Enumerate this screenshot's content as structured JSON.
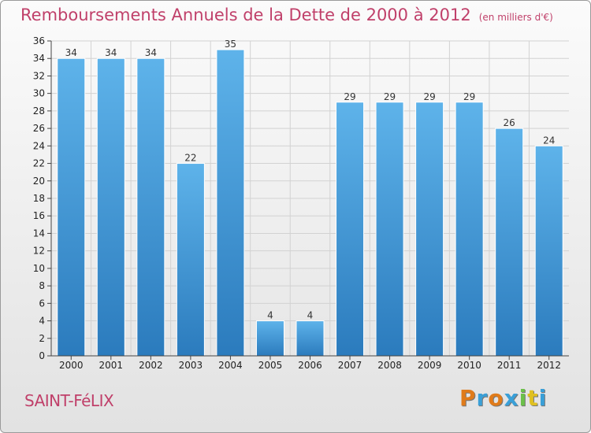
{
  "header": {
    "title": "Remboursements Annuels de la Dette de 2000 à 2012",
    "unit": "(en milliers d'€)"
  },
  "footer": {
    "commune": "SAINT-FéLIX",
    "logo_letters": [
      "P",
      "r",
      "o",
      "x",
      "i",
      "t",
      "i"
    ],
    "logo_colors": [
      "#e07b1a",
      "#3aa0d8",
      "#e07b1a",
      "#3aa0d8",
      "#6cc04a",
      "#e0c020",
      "#3aa0d8"
    ]
  },
  "colors": {
    "bar_light": "#5eb3ea",
    "bar_dark": "#2b7bbd",
    "title": "#c0406a"
  },
  "chart_data": {
    "type": "bar",
    "categories": [
      "2000",
      "2001",
      "2002",
      "2003",
      "2004",
      "2005",
      "2006",
      "2007",
      "2008",
      "2009",
      "2010",
      "2011",
      "2012"
    ],
    "values": [
      34,
      34,
      34,
      22,
      35,
      4,
      4,
      29,
      29,
      29,
      29,
      26,
      24
    ],
    "ylim": [
      0,
      36
    ],
    "yticks": [
      0,
      2,
      4,
      6,
      8,
      10,
      12,
      14,
      16,
      18,
      20,
      22,
      24,
      26,
      28,
      30,
      32,
      34,
      36
    ],
    "grid": true,
    "data_labels": true
  }
}
